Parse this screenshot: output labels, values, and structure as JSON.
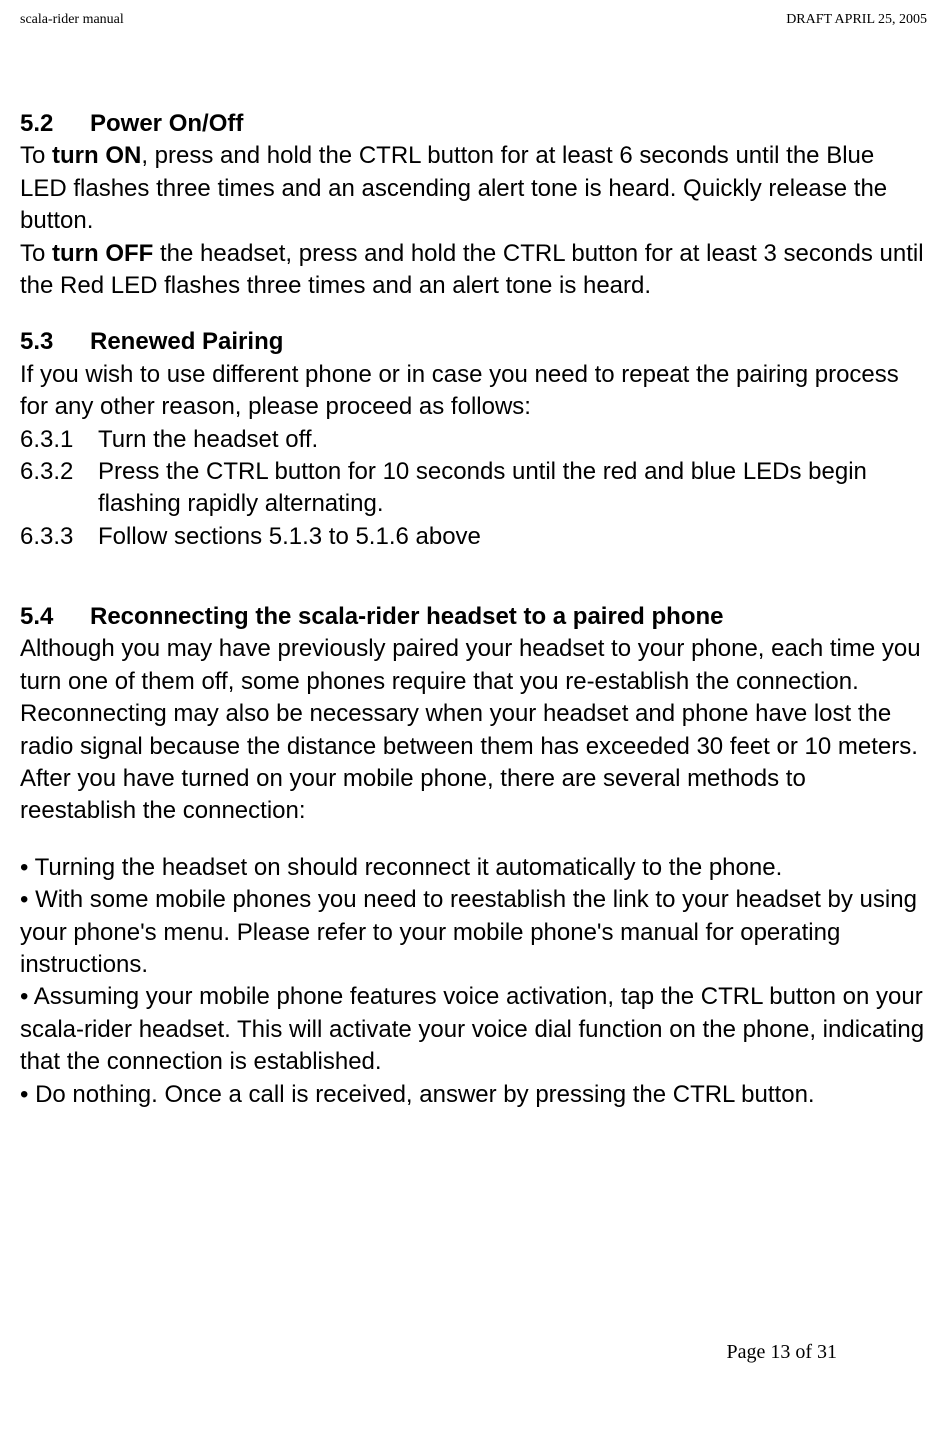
{
  "header": {
    "left": "scala-rider manual",
    "right": "DRAFT  APRIL 25, 2005"
  },
  "sections": {
    "s52": {
      "num": "5.2",
      "title": "Power On/Off",
      "p1a": "To ",
      "p1b": "turn ON",
      "p1c": ", press and hold the CTRL button for at least 6 seconds until the Blue LED flashes three times and an ascending alert tone is heard. Quickly release the button.",
      "p2a": "To ",
      "p2b": "turn OFF",
      "p2c": " the headset, press and hold the CTRL button for at least 3 seconds until the Red LED flashes three times and an alert tone is heard."
    },
    "s53": {
      "num": "5.3",
      "title": "Renewed Pairing",
      "p1": "If you wish to use different phone or in case you need to repeat the pairing process for any other reason, please proceed as follows:",
      "items": [
        {
          "num": "6.3.1",
          "text": "Turn the headset off."
        },
        {
          "num": "6.3.2",
          "text": "Press the CTRL button for 10 seconds until the red and blue LEDs begin flashing rapidly alternating."
        },
        {
          "num": "6.3.3",
          "text": "Follow sections 5.1.3 to  5.1.6 above"
        }
      ]
    },
    "s54": {
      "num": "5.4",
      "title": "Reconnecting the scala-rider headset to a paired phone",
      "p1": "Although you may have previously paired your headset to your phone, each time you turn one of them off, some phones require that you re-establish the connection.",
      "p2": "Reconnecting may also be necessary when your headset and phone have lost the radio signal because the distance between them has exceeded 30 feet or 10 meters. After you have turned on your mobile phone, there are several methods to reestablish the connection:",
      "b1": "• Turning the headset on should reconnect it automatically to the phone.",
      "b2": "• With some mobile phones you need to reestablish the link to your headset by using your phone's menu. Please refer to your mobile phone's manual for operating instructions.",
      "b3": "• Assuming your mobile phone features voice activation, tap the CTRL button on your scala-rider headset. This will activate your voice dial function on the phone, indicating that the connection is established.",
      "b4": "• Do nothing. Once a call is received, answer by pressing the CTRL button."
    }
  },
  "footer": "Page 13 of 31"
}
